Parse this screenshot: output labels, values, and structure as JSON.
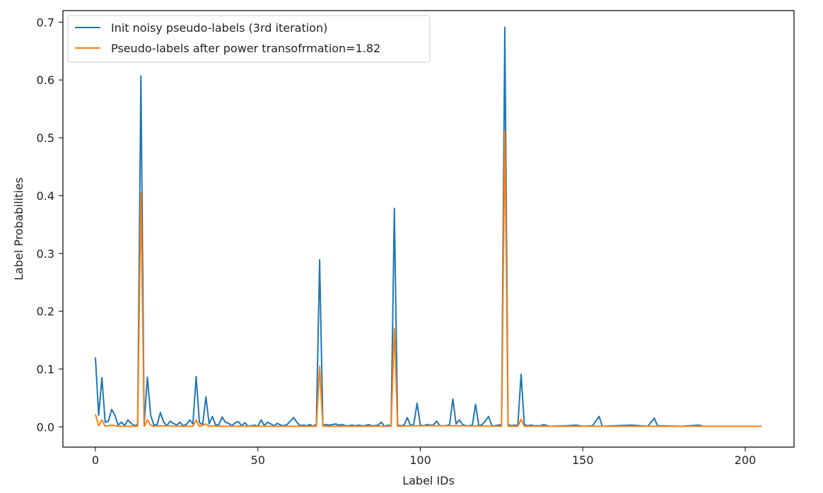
{
  "chart_data": {
    "type": "line",
    "xlabel": "Label IDs",
    "ylabel": "Label Probabilities",
    "xlim": [
      -10,
      215
    ],
    "ylim": [
      -0.035,
      0.72
    ],
    "xticks": [
      0,
      50,
      100,
      150,
      200
    ],
    "yticks": [
      0.0,
      0.1,
      0.2,
      0.3,
      0.4,
      0.5,
      0.6,
      0.7
    ],
    "xtick_labels": [
      "0",
      "50",
      "100",
      "150",
      "200"
    ],
    "ytick_labels": [
      "0.0",
      "0.1",
      "0.2",
      "0.3",
      "0.4",
      "0.5",
      "0.6",
      "0.7"
    ],
    "legend_position": "upper-left",
    "grid": false,
    "series": [
      {
        "name": "Init noisy pseudo-labels (3rd iteration)",
        "color": "#1f77b4",
        "points": [
          [
            0,
            0.12
          ],
          [
            1,
            0.02
          ],
          [
            2,
            0.085
          ],
          [
            3,
            0.008
          ],
          [
            4,
            0.01
          ],
          [
            5,
            0.03
          ],
          [
            6,
            0.02
          ],
          [
            7,
            0.003
          ],
          [
            8,
            0.008
          ],
          [
            9,
            0.002
          ],
          [
            10,
            0.012
          ],
          [
            11,
            0.006
          ],
          [
            12,
            0.002
          ],
          [
            13,
            0.004
          ],
          [
            14,
            0.607
          ],
          [
            15,
            0.005
          ],
          [
            16,
            0.086
          ],
          [
            17,
            0.02
          ],
          [
            18,
            0.003
          ],
          [
            19,
            0.004
          ],
          [
            20,
            0.025
          ],
          [
            21,
            0.008
          ],
          [
            22,
            0.002
          ],
          [
            23,
            0.01
          ],
          [
            24,
            0.006
          ],
          [
            25,
            0.003
          ],
          [
            26,
            0.008
          ],
          [
            27,
            0.002
          ],
          [
            28,
            0.004
          ],
          [
            29,
            0.012
          ],
          [
            30,
            0.005
          ],
          [
            31,
            0.087
          ],
          [
            32,
            0.008
          ],
          [
            33,
            0.003
          ],
          [
            34,
            0.052
          ],
          [
            35,
            0.005
          ],
          [
            36,
            0.018
          ],
          [
            37,
            0.003
          ],
          [
            38,
            0.004
          ],
          [
            39,
            0.017
          ],
          [
            40,
            0.008
          ],
          [
            41,
            0.006
          ],
          [
            42,
            0.002
          ],
          [
            43,
            0.007
          ],
          [
            44,
            0.009
          ],
          [
            45,
            0.002
          ],
          [
            46,
            0.007
          ],
          [
            47,
            0.001
          ],
          [
            48,
            0.002
          ],
          [
            49,
            0.003
          ],
          [
            50,
            0.001
          ],
          [
            51,
            0.012
          ],
          [
            52,
            0.002
          ],
          [
            53,
            0.008
          ],
          [
            54,
            0.005
          ],
          [
            55,
            0.002
          ],
          [
            56,
            0.006
          ],
          [
            57,
            0.003
          ],
          [
            58,
            0.002
          ],
          [
            59,
            0.004
          ],
          [
            60,
            0.01
          ],
          [
            61,
            0.016
          ],
          [
            62,
            0.008
          ],
          [
            63,
            0.002
          ],
          [
            64,
            0.003
          ],
          [
            65,
            0.002
          ],
          [
            66,
            0.004
          ],
          [
            67,
            0.001
          ],
          [
            68,
            0.005
          ],
          [
            69,
            0.289
          ],
          [
            70,
            0.003
          ],
          [
            71,
            0.004
          ],
          [
            72,
            0.003
          ],
          [
            73,
            0.004
          ],
          [
            74,
            0.005
          ],
          [
            75,
            0.003
          ],
          [
            76,
            0.004
          ],
          [
            77,
            0.002
          ],
          [
            78,
            0.002
          ],
          [
            79,
            0.003
          ],
          [
            80,
            0.002
          ],
          [
            81,
            0.003
          ],
          [
            82,
            0.002
          ],
          [
            83,
            0.002
          ],
          [
            84,
            0.004
          ],
          [
            85,
            0.002
          ],
          [
            86,
            0.002
          ],
          [
            87,
            0.003
          ],
          [
            88,
            0.008
          ],
          [
            89,
            0.001
          ],
          [
            90,
            0.003
          ],
          [
            91,
            0.002
          ],
          [
            92,
            0.378
          ],
          [
            93,
            0.003
          ],
          [
            94,
            0.002
          ],
          [
            95,
            0.003
          ],
          [
            96,
            0.016
          ],
          [
            97,
            0.002
          ],
          [
            98,
            0.005
          ],
          [
            99,
            0.041
          ],
          [
            100,
            0.003
          ],
          [
            101,
            0.002
          ],
          [
            102,
            0.004
          ],
          [
            103,
            0.003
          ],
          [
            104,
            0.003
          ],
          [
            105,
            0.01
          ],
          [
            106,
            0.002
          ],
          [
            107,
            0.002
          ],
          [
            108,
            0.002
          ],
          [
            109,
            0.004
          ],
          [
            110,
            0.048
          ],
          [
            111,
            0.005
          ],
          [
            112,
            0.012
          ],
          [
            113,
            0.004
          ],
          [
            114,
            0.002
          ],
          [
            115,
            0.002
          ],
          [
            116,
            0.003
          ],
          [
            117,
            0.039
          ],
          [
            118,
            0.002
          ],
          [
            119,
            0.004
          ],
          [
            120,
            0.01
          ],
          [
            121,
            0.018
          ],
          [
            122,
            0.002
          ],
          [
            123,
            0.002
          ],
          [
            124,
            0.003
          ],
          [
            125,
            0.004
          ],
          [
            126,
            0.691
          ],
          [
            127,
            0.004
          ],
          [
            128,
            0.002
          ],
          [
            129,
            0.003
          ],
          [
            130,
            0.002
          ],
          [
            131,
            0.091
          ],
          [
            132,
            0.004
          ],
          [
            133,
            0.002
          ],
          [
            134,
            0.003
          ],
          [
            135,
            0.002
          ],
          [
            136,
            0.002
          ],
          [
            137,
            0.002
          ],
          [
            138,
            0.004
          ],
          [
            139,
            0.002
          ],
          [
            140,
            0.001
          ],
          [
            145,
            0.002
          ],
          [
            148,
            0.003
          ],
          [
            150,
            0.001
          ],
          [
            153,
            0.002
          ],
          [
            155,
            0.018
          ],
          [
            156,
            0.001
          ],
          [
            160,
            0.002
          ],
          [
            165,
            0.003
          ],
          [
            170,
            0.001
          ],
          [
            172,
            0.015
          ],
          [
            173,
            0.002
          ],
          [
            180,
            0.001
          ],
          [
            186,
            0.003
          ],
          [
            187,
            0.001
          ],
          [
            195,
            0.001
          ],
          [
            205,
            0.001
          ]
        ]
      },
      {
        "name": "Pseudo-labels after power transofrmation=1.82",
        "color": "#ff7f0e",
        "points": [
          [
            0,
            0.022
          ],
          [
            1,
            0.002
          ],
          [
            2,
            0.012
          ],
          [
            3,
            0.001
          ],
          [
            4,
            0.002
          ],
          [
            5,
            0.003
          ],
          [
            6,
            0.002
          ],
          [
            7,
            0.001
          ],
          [
            8,
            0.001
          ],
          [
            12,
            0.001
          ],
          [
            13,
            0.001
          ],
          [
            14,
            0.405
          ],
          [
            15,
            0.001
          ],
          [
            16,
            0.012
          ],
          [
            17,
            0.003
          ],
          [
            18,
            0.001
          ],
          [
            20,
            0.002
          ],
          [
            25,
            0.001
          ],
          [
            29,
            0.001
          ],
          [
            30,
            0.001
          ],
          [
            31,
            0.012
          ],
          [
            32,
            0.001
          ],
          [
            34,
            0.005
          ],
          [
            35,
            0.001
          ],
          [
            36,
            0.002
          ],
          [
            37,
            0.001
          ],
          [
            60,
            0.001
          ],
          [
            68,
            0.001
          ],
          [
            69,
            0.105
          ],
          [
            70,
            0.001
          ],
          [
            91,
            0.001
          ],
          [
            92,
            0.17
          ],
          [
            93,
            0.001
          ],
          [
            99,
            0.002
          ],
          [
            110,
            0.002
          ],
          [
            125,
            0.001
          ],
          [
            126,
            0.512
          ],
          [
            127,
            0.001
          ],
          [
            130,
            0.001
          ],
          [
            131,
            0.013
          ],
          [
            132,
            0.001
          ],
          [
            150,
            0.001
          ],
          [
            205,
            0.001
          ]
        ]
      }
    ]
  }
}
